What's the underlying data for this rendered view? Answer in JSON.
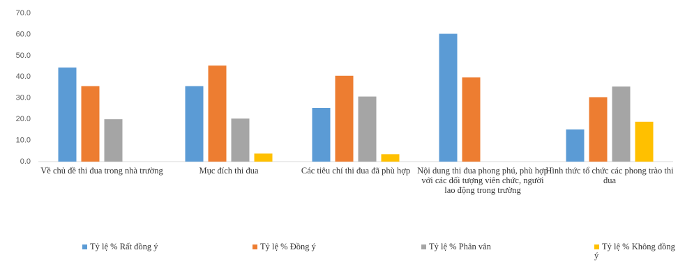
{
  "chart_data": {
    "type": "bar",
    "categories": [
      "Về chủ đề thi đua trong nhà trường",
      "Mục đích thi đua",
      "Các tiêu chí thi đua đã phù hợp",
      "Nội dung thi đua phong phú, phù hợp với các đối tượng viên chức, người lao động trong trường",
      "Hình thức tổ chức các phong trào thi đua"
    ],
    "series": [
      {
        "name": "Tỷ lệ %  Rất đồng ý",
        "color": "#5b9bd5",
        "values": [
          44.4,
          35.6,
          25.3,
          60.3,
          15.2
        ]
      },
      {
        "name": "Tỷ lệ %  Đồng ý",
        "color": "#ed7d31",
        "values": [
          35.6,
          45.3,
          40.5,
          39.7,
          30.4
        ]
      },
      {
        "name": "Tỷ lệ %  Phân vân",
        "color": "#a5a5a5",
        "values": [
          20.0,
          20.3,
          30.7,
          0,
          35.4
        ]
      },
      {
        "name": "Tỷ lệ %  Không đồng ý",
        "color": "#ffc000",
        "values": [
          0,
          3.8,
          3.5,
          0,
          18.8
        ]
      }
    ],
    "ylim": [
      0,
      70
    ],
    "yticks": [
      {
        "value": 0,
        "label": "0.0"
      },
      {
        "value": 10,
        "label": "10.0"
      },
      {
        "value": 20,
        "label": "20.0"
      },
      {
        "value": 30,
        "label": "30.0"
      },
      {
        "value": 40,
        "label": "40.0"
      },
      {
        "value": 50,
        "label": "50.0"
      },
      {
        "value": 60,
        "label": "60.0"
      },
      {
        "value": 70,
        "label": "70.0"
      }
    ],
    "grid": false,
    "legend": "bottom"
  }
}
